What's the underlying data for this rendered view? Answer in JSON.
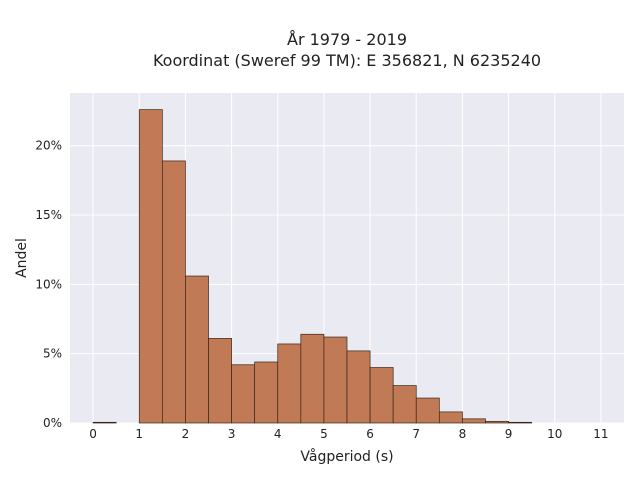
{
  "chart_data": {
    "type": "bar",
    "title_line1": "År 1979 - 2019",
    "title_line2": "Koordinat (Sweref 99 TM): E 356821, N 6235240",
    "xlabel": "Vågperiod (s)",
    "ylabel": "Andel",
    "x_ticks": [
      "0",
      "1",
      "2",
      "3",
      "4",
      "5",
      "6",
      "7",
      "8",
      "9",
      "10",
      "11"
    ],
    "y_ticks": [
      "0%",
      "5%",
      "10%",
      "15%",
      "20%"
    ],
    "y_tick_values": [
      0,
      5,
      10,
      15,
      20
    ],
    "xlim": [
      -0.5,
      11.5
    ],
    "ylim": [
      0,
      23.8
    ],
    "bin_width": 0.5,
    "grid": true,
    "bar_color": "#c07a55",
    "edge_color": "#3a2418",
    "plot_bg": "#eaeaf2",
    "bins": [
      {
        "x0": 0.0,
        "value": 0.05
      },
      {
        "x0": 1.0,
        "value": 22.6
      },
      {
        "x0": 1.5,
        "value": 18.9
      },
      {
        "x0": 2.0,
        "value": 10.6
      },
      {
        "x0": 2.5,
        "value": 6.1
      },
      {
        "x0": 3.0,
        "value": 4.2
      },
      {
        "x0": 3.5,
        "value": 4.4
      },
      {
        "x0": 4.0,
        "value": 5.7
      },
      {
        "x0": 4.5,
        "value": 6.4
      },
      {
        "x0": 5.0,
        "value": 6.2
      },
      {
        "x0": 5.5,
        "value": 5.2
      },
      {
        "x0": 6.0,
        "value": 4.0
      },
      {
        "x0": 6.5,
        "value": 2.7
      },
      {
        "x0": 7.0,
        "value": 1.8
      },
      {
        "x0": 7.5,
        "value": 0.8
      },
      {
        "x0": 8.0,
        "value": 0.3
      },
      {
        "x0": 8.5,
        "value": 0.12
      },
      {
        "x0": 9.0,
        "value": 0.05
      }
    ]
  }
}
